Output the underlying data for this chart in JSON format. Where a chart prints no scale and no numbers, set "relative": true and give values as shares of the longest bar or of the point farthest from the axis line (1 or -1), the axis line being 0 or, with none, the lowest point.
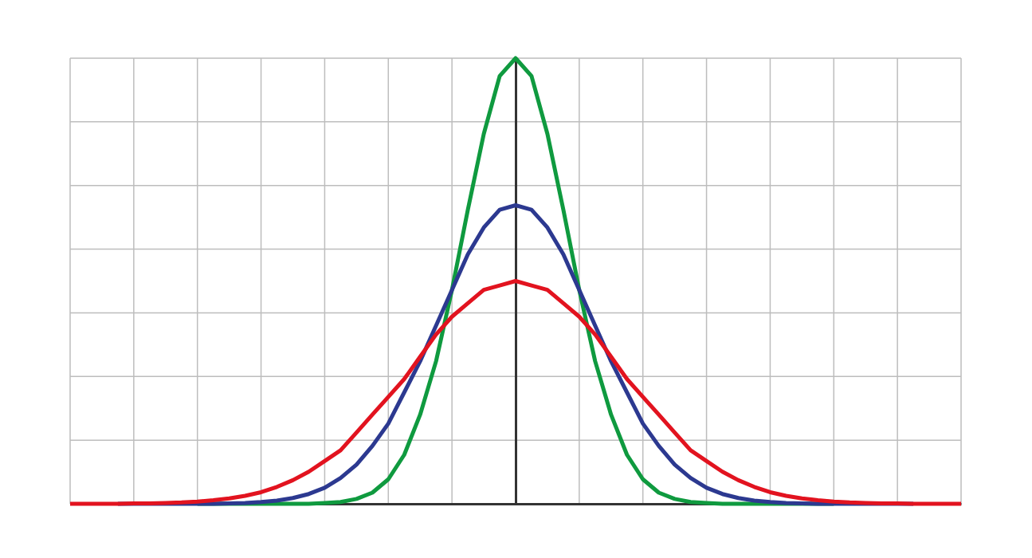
{
  "chart_data": {
    "type": "line",
    "relative": true,
    "grid": true,
    "marker": "none",
    "line_style": "solid",
    "categories": [
      null,
      null,
      null,
      null,
      null,
      null,
      null,
      null,
      null,
      null,
      null,
      null,
      null,
      null,
      null,
      null,
      null,
      null,
      null,
      null,
      null,
      null,
      null,
      null,
      null,
      null,
      null,
      null,
      null,
      null,
      null,
      null,
      null,
      null,
      null,
      null,
      null,
      null,
      null,
      null,
      null,
      null,
      null,
      null,
      null,
      null,
      null,
      null,
      null,
      null,
      null,
      null,
      null,
      null,
      null,
      null,
      null
    ],
    "series": [
      {
        "color": "#0f9a3f",
        "values": [
          null,
          null,
          null,
          null,
          null,
          null,
          null,
          null,
          0,
          0,
          0,
          0,
          0,
          0,
          0,
          0,
          0.002,
          0.004,
          0.011,
          0.025,
          0.055,
          0.11,
          0.2,
          0.32,
          0.48,
          0.66,
          0.83,
          0.96,
          1,
          0.96,
          0.83,
          0.66,
          0.48,
          0.32,
          0.2,
          0.11,
          0.055,
          0.025,
          0.011,
          0.004,
          0.002,
          0,
          0,
          0,
          0,
          0,
          0,
          0,
          0,
          null,
          null,
          null,
          null,
          null,
          null,
          null,
          null
        ]
      },
      {
        "color": "#2c3990",
        "values": [
          null,
          null,
          null,
          0,
          0,
          0,
          0,
          0,
          0,
          0,
          0.001,
          0.002,
          0.004,
          0.007,
          0.013,
          0.022,
          0.036,
          0.058,
          0.088,
          0.13,
          0.18,
          0.25,
          0.32,
          0.4,
          0.48,
          0.56,
          0.62,
          0.66,
          0.67,
          0.66,
          0.62,
          0.56,
          0.48,
          0.4,
          0.32,
          0.25,
          0.18,
          0.13,
          0.088,
          0.058,
          0.036,
          0.022,
          0.013,
          0.007,
          0.004,
          0.002,
          0.001,
          0,
          0,
          0,
          0,
          0,
          0,
          0,
          null,
          null,
          null
        ]
      },
      {
        "color": "#e2131f",
        "values": [
          0,
          0,
          0,
          0,
          0.001,
          0.001,
          0.002,
          0.003,
          0.005,
          0.008,
          0.012,
          0.018,
          0.026,
          0.038,
          0.053,
          0.072,
          0.096,
          0.12,
          0.16,
          0.2,
          0.24,
          0.28,
          0.33,
          0.38,
          0.42,
          0.45,
          0.48,
          0.49,
          0.5,
          0.49,
          0.48,
          0.45,
          0.42,
          0.38,
          0.33,
          0.28,
          0.24,
          0.2,
          0.16,
          0.12,
          0.096,
          0.072,
          0.053,
          0.038,
          0.026,
          0.018,
          0.012,
          0.008,
          0.005,
          0.003,
          0.002,
          0.001,
          0.001,
          0,
          0,
          0,
          0
        ]
      }
    ]
  }
}
